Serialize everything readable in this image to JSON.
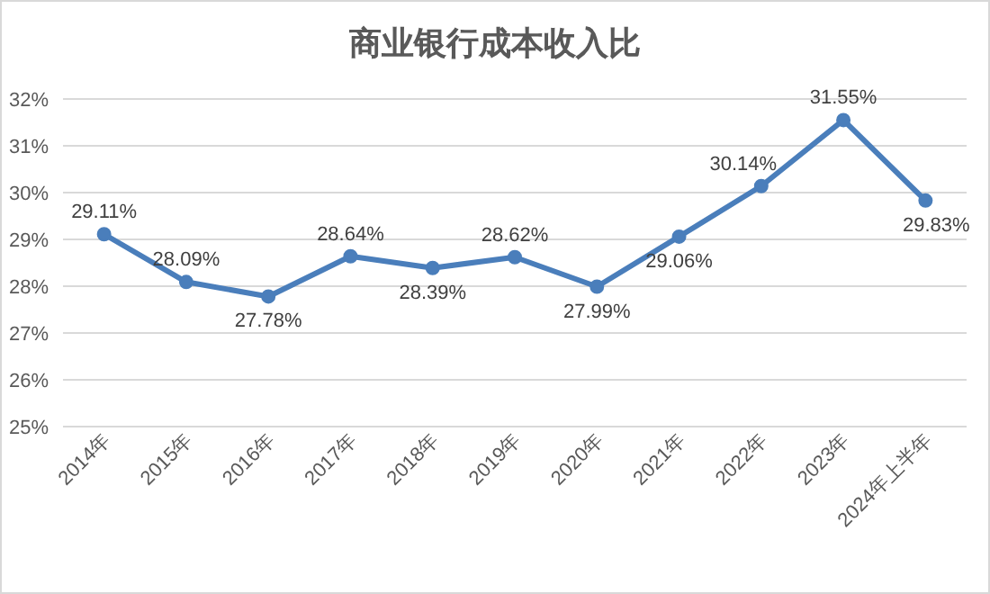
{
  "chart_data": {
    "type": "line",
    "title": "商业银行成本收入比",
    "categories": [
      "2014年",
      "2015年",
      "2016年",
      "2017年",
      "2018年",
      "2019年",
      "2020年",
      "2021年",
      "2022年",
      "2023年",
      "2024年上半年"
    ],
    "series": [
      {
        "color": "#4a7ebb",
        "values": [
          29.11,
          28.09,
          27.78,
          28.64,
          28.39,
          28.62,
          27.99,
          29.06,
          30.14,
          31.55,
          29.83
        ],
        "value_labels": [
          "29.11%",
          "28.09%",
          "27.78%",
          "28.64%",
          "28.39%",
          "28.62%",
          "27.99%",
          "29.06%",
          "30.14%",
          "31.55%",
          "29.83%"
        ]
      }
    ],
    "ylim": [
      25,
      32
    ],
    "yticks": [
      {
        "value": 25,
        "label": "25%"
      },
      {
        "value": 26,
        "label": "26%"
      },
      {
        "value": 27,
        "label": "27%"
      },
      {
        "value": 28,
        "label": "28%"
      },
      {
        "value": 29,
        "label": "29%"
      },
      {
        "value": 30,
        "label": "30%"
      },
      {
        "value": 31,
        "label": "31%"
      },
      {
        "value": 32,
        "label": "32%"
      }
    ],
    "grid": "y",
    "marker": "circle",
    "line_style": "solid"
  }
}
